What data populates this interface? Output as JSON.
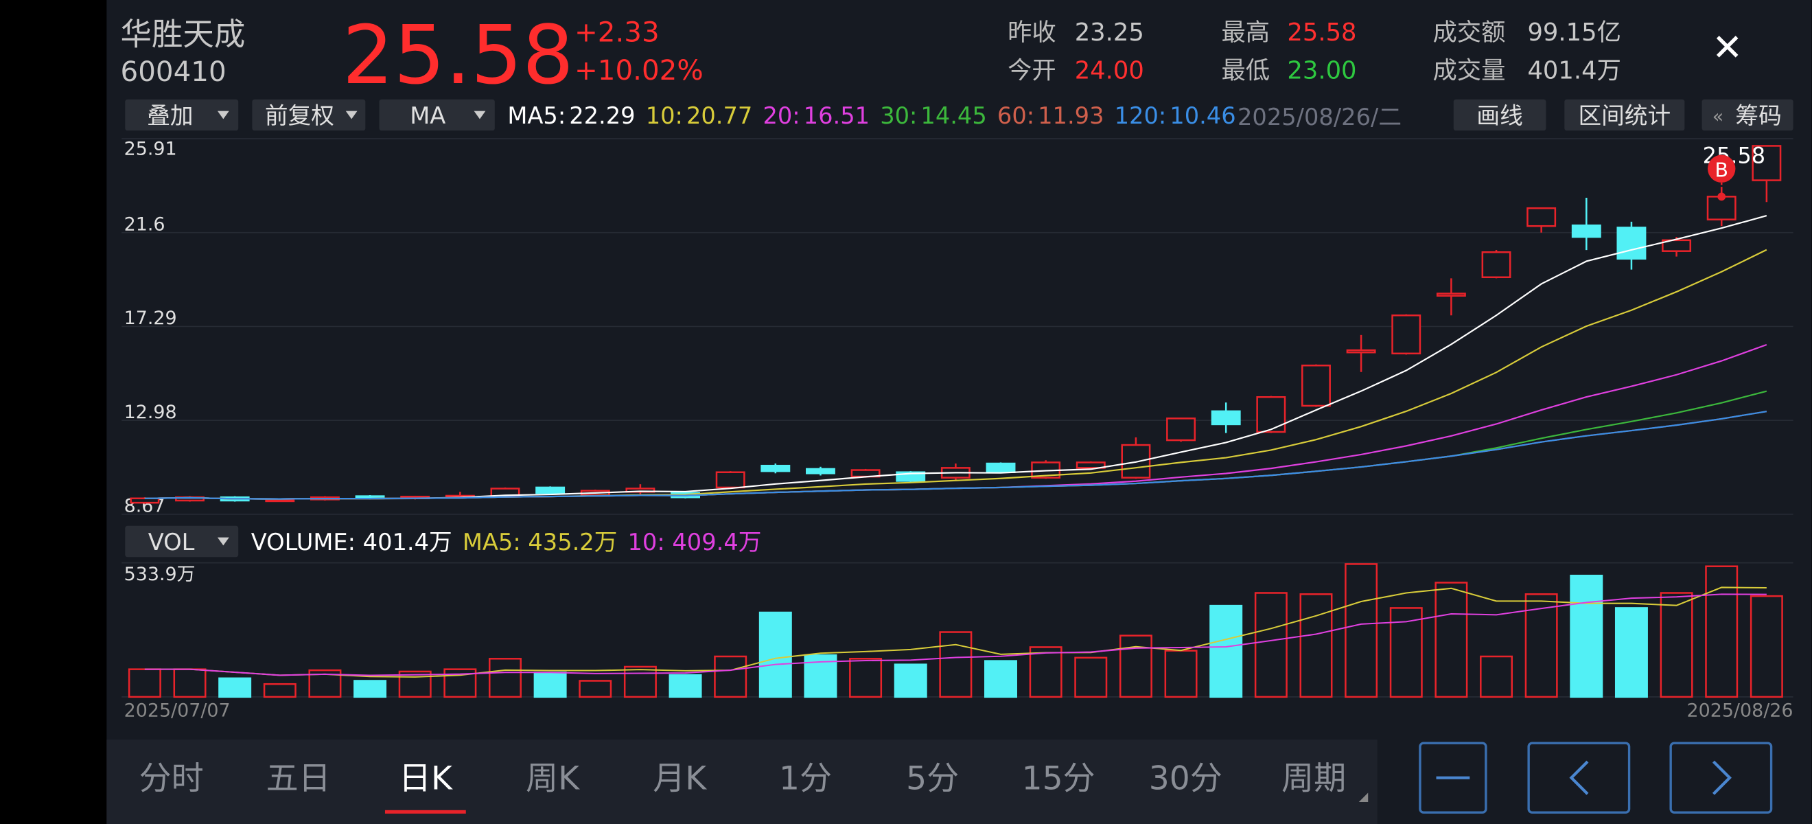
{
  "header": {
    "name": "华胜天成",
    "code": "600410",
    "price": "25.58",
    "change": "+2.33",
    "change_pct": "+10.02%",
    "stats": [
      {
        "label": "昨收",
        "value": "23.25",
        "color": "#c8c8c8"
      },
      {
        "label": "今开",
        "value": "24.00",
        "color": "#ff3030"
      },
      {
        "label": "最高",
        "value": "25.58",
        "color": "#ff3030"
      },
      {
        "label": "最低",
        "value": "23.00",
        "color": "#2ec840"
      },
      {
        "label": "成交额",
        "value": "99.15亿",
        "color": "#c8c8c8"
      },
      {
        "label": "成交量",
        "value": "401.4万",
        "color": "#c8c8c8"
      }
    ],
    "close_icon": "✕"
  },
  "toolbar": {
    "overlay": "叠加",
    "adjust": "前复权",
    "indicator": "MA",
    "ma_legend": [
      {
        "label": "MA5:",
        "value": "22.29",
        "color": "#ffffff"
      },
      {
        "label": "10:",
        "value": "20.77",
        "color": "#d8cc3a"
      },
      {
        "label": "20:",
        "value": "16.51",
        "color": "#e040e0"
      },
      {
        "label": "30:",
        "value": "14.45",
        "color": "#3cb83c"
      },
      {
        "label": "60:",
        "value": "11.93",
        "color": "#d0604c"
      },
      {
        "label": "120:",
        "value": "10.46",
        "color": "#3a8ee6"
      }
    ],
    "date": "2025/08/26/二",
    "buttons": [
      "画线",
      "区间统计",
      "筹码"
    ],
    "chips_prefix": "«"
  },
  "chart_data": {
    "type": "candlestick",
    "categories": [
      "2025/07/07",
      null,
      null,
      null,
      null,
      null,
      null,
      null,
      null,
      null,
      null,
      null,
      null,
      null,
      null,
      null,
      null,
      null,
      null,
      null,
      null,
      null,
      null,
      null,
      null,
      null,
      null,
      null,
      null,
      null,
      null,
      null,
      null,
      null,
      null,
      null,
      "2025/08/26"
    ],
    "open": [
      9.2,
      9.3,
      9.45,
      9.3,
      9.35,
      9.5,
      9.4,
      9.5,
      9.5,
      9.9,
      9.55,
      9.7,
      9.65,
      9.9,
      10.9,
      10.75,
      10.4,
      10.6,
      10.35,
      11.0,
      10.35,
      10.8,
      10.35,
      12.07,
      13.4,
      12.45,
      13.65,
      16.1,
      16.05,
      18.7,
      19.55,
      21.9,
      21.93,
      21.83,
      20.75,
      22.2,
      24.0
    ],
    "close": [
      9.4,
      9.45,
      9.3,
      9.35,
      9.45,
      9.4,
      9.48,
      9.52,
      9.85,
      9.65,
      9.75,
      9.85,
      9.45,
      10.6,
      10.65,
      10.55,
      10.7,
      10.2,
      10.8,
      10.6,
      11.05,
      11.05,
      11.85,
      13.07,
      12.8,
      14.05,
      15.5,
      16.2,
      17.8,
      18.8,
      20.7,
      22.72,
      21.4,
      20.4,
      21.25,
      23.25,
      25.58
    ],
    "high": [
      9.45,
      9.5,
      9.5,
      9.4,
      9.5,
      9.55,
      9.52,
      9.7,
      9.9,
      9.95,
      9.8,
      10.05,
      9.7,
      10.65,
      11.0,
      10.85,
      10.75,
      10.65,
      11.0,
      11.05,
      11.15,
      11.1,
      12.2,
      13.1,
      13.8,
      14.1,
      15.55,
      16.9,
      17.85,
      19.5,
      20.8,
      22.75,
      23.2,
      22.1,
      21.4,
      23.7,
      25.58
    ],
    "low": [
      9.15,
      9.25,
      9.25,
      9.25,
      9.3,
      9.35,
      9.35,
      9.4,
      9.45,
      9.6,
      9.5,
      9.6,
      9.4,
      9.85,
      10.55,
      10.45,
      10.35,
      10.1,
      10.25,
      10.55,
      10.3,
      10.75,
      10.3,
      12.0,
      12.4,
      12.4,
      13.6,
      15.2,
      16.0,
      17.8,
      19.5,
      21.6,
      20.8,
      19.9,
      20.5,
      21.9,
      23.0
    ],
    "ylim": [
      8.67,
      25.91
    ],
    "yticks": [
      8.67,
      12.98,
      17.29,
      21.6,
      25.91
    ],
    "up_color": "#e8232a",
    "down_color": "#52f0f5",
    "grid": true,
    "signal": "B",
    "volume": {
      "indicator": "VOL",
      "legend": [
        {
          "text": "VOLUME: 401.4万",
          "color": "#ffffff"
        },
        {
          "text": "MA5: 435.2万",
          "color": "#d8cc3a"
        },
        {
          "text": "10: 409.4万",
          "color": "#e040e0"
        }
      ],
      "values": [
        110,
        110,
        74,
        51,
        106,
        64,
        101,
        110,
        152,
        97,
        64,
        120,
        87,
        161,
        336,
        166,
        152,
        129,
        258,
        143,
        198,
        156,
        244,
        184,
        363,
        414,
        409,
        529,
        354,
        455,
        161,
        409,
        483,
        354,
        414,
        520,
        401.4
      ],
      "ylim": [
        0,
        533.9
      ],
      "yticks": [
        {
          "value": 533.9,
          "label": "533.9万"
        }
      ]
    }
  },
  "tabs": {
    "items": [
      "分时",
      "五日",
      "日K",
      "周K",
      "月K",
      "1分",
      "5分",
      "15分",
      "30分",
      "周期"
    ],
    "active": 2
  }
}
